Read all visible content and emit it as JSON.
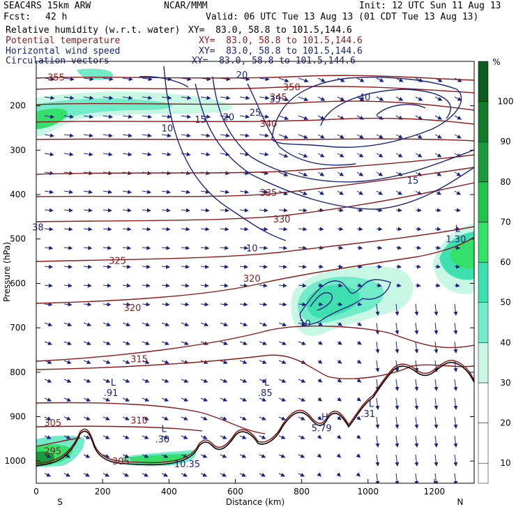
{
  "header": {
    "model": "SEAC4RS 15km ARW",
    "org": "NCAR/MMM",
    "init": "Init: 12 UTC Sun 11 Aug 13",
    "fcst_label": "Fcst:",
    "fcst_value": "42 h",
    "valid": "Valid: 06 UTC Tue 13 Aug 13 (01 CDT Tue 13 Aug 13)",
    "fields": [
      {
        "name": "Relative humidity (w.r.t. water)",
        "xy": "XY=  83.0, 58.8 to 101.5,144.6",
        "color": "#000000"
      },
      {
        "name": "Potential temperature",
        "xy": "XY=  83.0, 58.8 to 101.5,144.6",
        "color": "#8b1a1a"
      },
      {
        "name": "Horizontal wind speed",
        "xy": "XY=  83.0, 58.8 to 101.5,144.6",
        "color": "#1a237e"
      },
      {
        "name": "Circulation vectors",
        "xy": "XY=  83.0, 58.8 to 101.5,144.6",
        "color": "#1a237e"
      }
    ]
  },
  "chart_data": {
    "type": "cross-section",
    "xlabel": "Distance (km)",
    "ylabel": "Pressure (hPa)",
    "xlim": [
      0,
      1320
    ],
    "ylim": [
      1050,
      100
    ],
    "x_ticks": [
      0,
      200,
      400,
      600,
      800,
      1000,
      1200
    ],
    "y_ticks": [
      200,
      300,
      400,
      500,
      600,
      700,
      800,
      900,
      1000
    ],
    "left_end_label": "S",
    "right_end_label": "N",
    "colorbar": {
      "unit": "%",
      "ticks": [
        10,
        20,
        30,
        40,
        50,
        60,
        70,
        80,
        90,
        100
      ],
      "colors": [
        "#ffffff",
        "#ffffff",
        "#c9f7e6",
        "#72ecc8",
        "#3ee0b0",
        "#35e06a",
        "#22c24c",
        "#1a9a3a",
        "#137a2c",
        "#0c5c1f"
      ]
    },
    "theta_labels": [
      {
        "text": "355",
        "x": 60,
        "p": 135
      },
      {
        "text": "350",
        "x": 770,
        "p": 157
      },
      {
        "text": "345",
        "x": 730,
        "p": 180
      },
      {
        "text": "340",
        "x": 700,
        "p": 240
      },
      {
        "text": "335",
        "x": 700,
        "p": 395
      },
      {
        "text": "330",
        "x": 740,
        "p": 455
      },
      {
        "text": "325",
        "x": 245,
        "p": 548
      },
      {
        "text": "320",
        "x": 290,
        "p": 654
      },
      {
        "text": "320",
        "x": 650,
        "p": 588
      },
      {
        "text": "315",
        "x": 310,
        "p": 770
      },
      {
        "text": "310",
        "x": 310,
        "p": 908
      },
      {
        "text": "305",
        "x": 50,
        "p": 913
      },
      {
        "text": "305",
        "x": 255,
        "p": 1000
      },
      {
        "text": "295",
        "x": 50,
        "p": 977
      }
    ],
    "wind_labels": [
      {
        "text": "10",
        "x": 395,
        "p": 250
      },
      {
        "text": "15",
        "x": 495,
        "p": 230
      },
      {
        "text": "20",
        "x": 580,
        "p": 225
      },
      {
        "text": "25",
        "x": 660,
        "p": 215
      },
      {
        "text": "20",
        "x": 620,
        "p": 130
      },
      {
        "text": "35",
        "x": 720,
        "p": 185
      },
      {
        "text": "40",
        "x": 990,
        "p": 180
      },
      {
        "text": "15",
        "x": 1135,
        "p": 368
      },
      {
        "text": "10",
        "x": 650,
        "p": 520
      },
      {
        "text": "10",
        "x": 810,
        "p": 690
      }
    ],
    "misc_labels": [
      {
        "text": "L",
        "x": 232,
        "p": 822
      },
      {
        "text": ".91",
        "x": 225,
        "p": 846
      },
      {
        "text": "L",
        "x": 695,
        "p": 822
      },
      {
        "text": ".85",
        "x": 690,
        "p": 846
      },
      {
        "text": "H",
        "x": 870,
        "p": 900
      },
      {
        "text": "5.79",
        "x": 860,
        "p": 925
      },
      {
        "text": "L",
        "x": 1010,
        "p": 870
      },
      {
        "text": ".31",
        "x": 1000,
        "p": 893
      },
      {
        "text": "L",
        "x": 385,
        "p": 927
      },
      {
        "text": ".30",
        "x": 380,
        "p": 950
      },
      {
        "text": "10.35",
        "x": 455,
        "p": 1006
      },
      {
        "text": "L",
        "x": 1270,
        "p": 476
      },
      {
        "text": "1.30",
        "x": 1265,
        "p": 500
      },
      {
        "text": "38",
        "x": 5,
        "p": 473
      }
    ]
  }
}
